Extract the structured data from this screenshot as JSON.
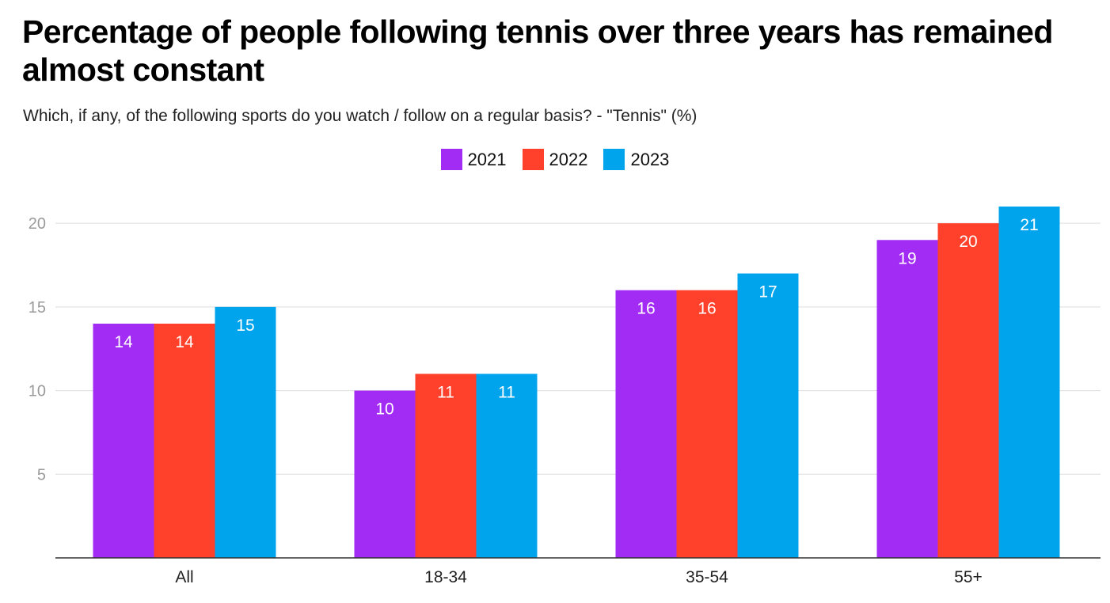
{
  "title": "Percentage of people following tennis over three years has remained almost constant",
  "subtitle": "Which, if any, of the following sports do you watch / follow on a regular basis? - \"Tennis\" (%)",
  "chart_data": {
    "type": "bar",
    "categories": [
      "All",
      "18-34",
      "35-54",
      "55+"
    ],
    "series": [
      {
        "name": "2021",
        "color": "#a32cf5",
        "values": [
          14,
          10,
          16,
          19
        ]
      },
      {
        "name": "2022",
        "color": "#ff412c",
        "values": [
          14,
          11,
          16,
          20
        ]
      },
      {
        "name": "2023",
        "color": "#00a4ec",
        "values": [
          15,
          11,
          17,
          21
        ]
      }
    ],
    "yticks": [
      5,
      10,
      15,
      20
    ],
    "ylim": [
      0,
      21
    ],
    "grid": true,
    "legend": "top-center",
    "data_labels": true
  }
}
